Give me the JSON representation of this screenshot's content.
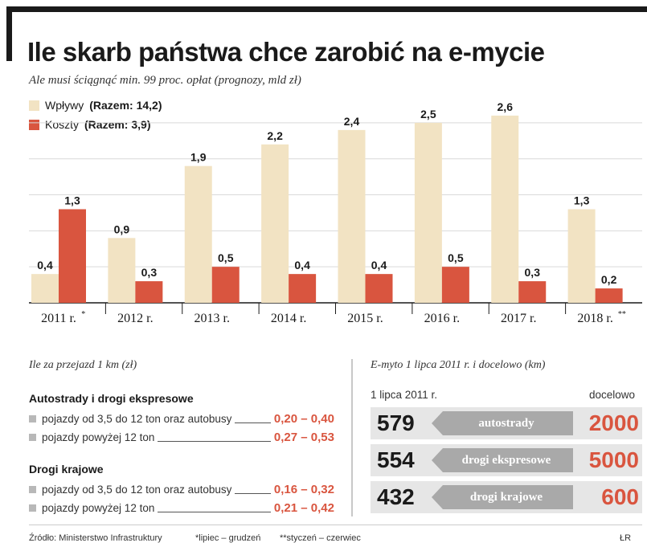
{
  "chart_data": {
    "type": "bar",
    "title": "Ile skarb państwa chce zarobić na e-mycie",
    "subtitle": "Ale musi ściągnąć min. 99 proc. opłat (prognozy, mld zł)",
    "categories": [
      "2011 r.",
      "2012 r.",
      "2013 r.",
      "2014 r.",
      "2015 r.",
      "2016 r.",
      "2017 r.",
      "2018 r."
    ],
    "category_marks": [
      "*",
      "",
      "",
      "",
      "",
      "",
      "",
      "**"
    ],
    "series": [
      {
        "name": "Wpływy",
        "total_label": "(Razem: 14,2)",
        "color": "#f2e3c3",
        "values": [
          0.4,
          0.9,
          1.9,
          2.2,
          2.4,
          2.5,
          2.6,
          1.3
        ],
        "labels": [
          "0,4",
          "0,9",
          "1,9",
          "2,2",
          "2,4",
          "2,5",
          "2,6",
          "1,3"
        ]
      },
      {
        "name": "Koszty",
        "total_label": "(Razem: 3,9)",
        "color": "#d9553f",
        "values": [
          1.3,
          0.3,
          0.5,
          0.4,
          0.4,
          0.5,
          0.3,
          0.2
        ],
        "labels": [
          "1,3",
          "0,3",
          "0,5",
          "0,4",
          "0,4",
          "0,5",
          "0,3",
          "0,2"
        ]
      }
    ],
    "ylim": [
      0,
      2.8
    ],
    "grid": true,
    "legend": "top-left"
  },
  "rates": {
    "title": "Ile za przejazd 1 km (zł)",
    "groups": [
      {
        "name": "Autostrady i drogi ekspresowe",
        "rows": [
          {
            "label": "pojazdy od 3,5 do 12 ton oraz autobusy",
            "value": "0,20 – 0,40"
          },
          {
            "label": "pojazdy powyżej 12 ton",
            "value": "0,27 – 0,53"
          }
        ]
      },
      {
        "name": "Drogi krajowe",
        "rows": [
          {
            "label": "pojazdy od 3,5 do 12 ton oraz autobusy",
            "value": "0,16 – 0,32"
          },
          {
            "label": "pojazdy powyżej 12 ton",
            "value": "0,21 – 0,42"
          }
        ]
      }
    ]
  },
  "emyto": {
    "title": "E-myto 1 lipca 2011 r. i docelowo (km)",
    "col_start": "1 lipca 2011 r.",
    "col_target": "docelowo",
    "rows": [
      {
        "start": "579",
        "label": "autostrady",
        "target": "2000"
      },
      {
        "start": "554",
        "label": "drogi ekspresowe",
        "target": "5000"
      },
      {
        "start": "432",
        "label": "drogi krajowe",
        "target": "600"
      }
    ]
  },
  "footer": {
    "source": "Źródło: Ministerstwo Infrastruktury",
    "note1": "*lipiec – grudzeń",
    "note2": "**styczeń – czerwiec",
    "author": "ŁR"
  }
}
